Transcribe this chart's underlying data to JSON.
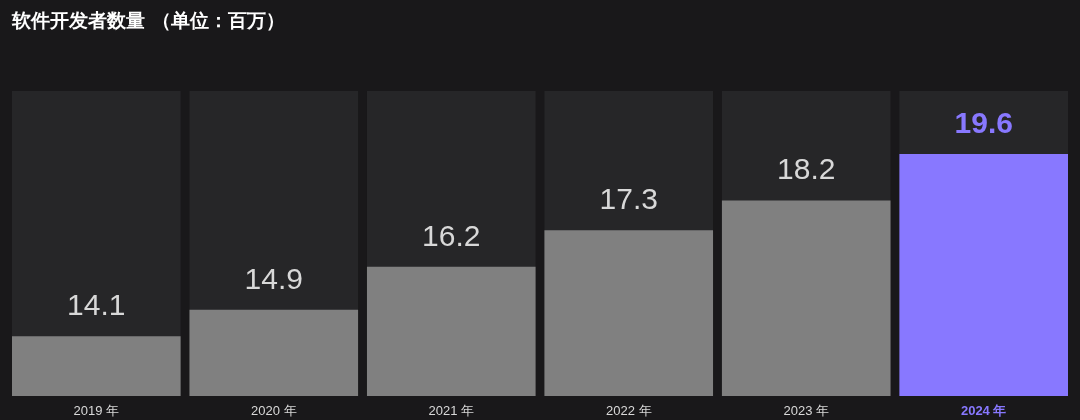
{
  "chart_data": {
    "type": "bar",
    "title": "软件开发者数量 （单位：百万）",
    "categories": [
      "2019 年",
      "2020 年",
      "2021 年",
      "2022 年",
      "2023 年",
      "2024 年"
    ],
    "values": [
      14.1,
      14.9,
      16.2,
      17.3,
      18.2,
      19.6
    ],
    "colors": [
      "#808080",
      "#808080",
      "#808080",
      "#808080",
      "#808080",
      "#8878ff"
    ],
    "ylim": [
      12.3,
      21.5
    ],
    "data_labels": true,
    "tick_labels": "x",
    "grid": false
  }
}
